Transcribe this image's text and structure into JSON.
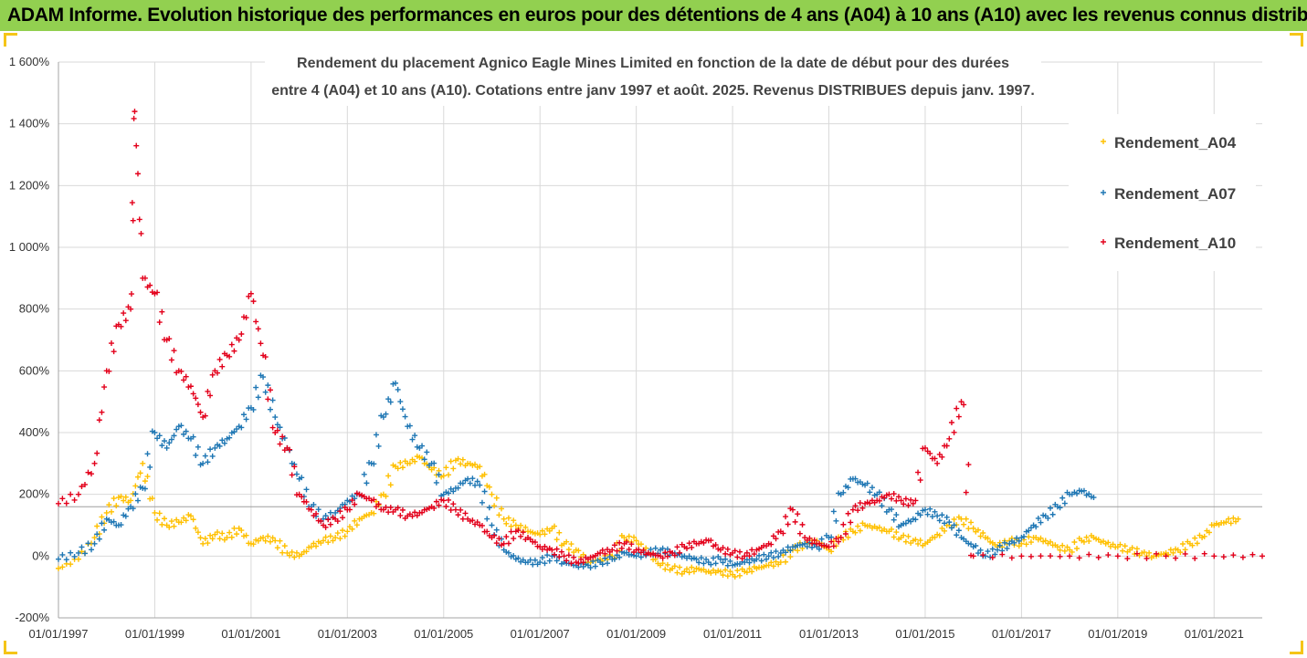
{
  "banner": {
    "title": "ADAM Informe. Evolution historique des performances en euros pour des détentions de 4 ans (A04) à 10 ans (A10) avec les revenus connus distribués",
    "color": "#92d050"
  },
  "chart_data": {
    "type": "scatter",
    "title_line1": "Rendement du placement Agnico Eagle Mines Limited en fonction de la date de début pour des durées",
    "title_line2": "entre 4 (A04) et 10 ans (A10). Cotations entre janv 1997 et août. 2025. Revenus DISTRIBUES depuis janv. 1997.",
    "xlabel": "",
    "ylabel": "",
    "x_ticks": [
      "01/01/1997",
      "01/01/1999",
      "01/01/2001",
      "01/01/2003",
      "01/01/2005",
      "01/01/2007",
      "01/01/2009",
      "01/01/2011",
      "01/01/2013",
      "01/01/2015",
      "01/01/2017",
      "01/01/2019",
      "01/01/2021"
    ],
    "y_ticks": [
      "-200%",
      "0%",
      "200%",
      "400%",
      "600%",
      "800%",
      "1 000%",
      "1 200%",
      "1 400%",
      "1 600%"
    ],
    "xlim": [
      "1997-01-01",
      "2022-01-01"
    ],
    "ylim": [
      -200,
      1600
    ],
    "grid": true,
    "legend_position": "top-right",
    "reference_line": 160,
    "marker": "+",
    "series": [
      {
        "name": "Rendement_A04",
        "color": "#ffc000",
        "x": [
          "1997-01",
          "1997-06",
          "1997-10",
          "1998-01",
          "1998-04",
          "1998-07",
          "1998-10",
          "1999-01",
          "1999-04",
          "1999-07",
          "1999-10",
          "2000-01",
          "2000-04",
          "2000-07",
          "2000-10",
          "2001-01",
          "2001-04",
          "2001-07",
          "2001-10",
          "2002-01",
          "2002-04",
          "2002-07",
          "2002-10",
          "2003-01",
          "2003-04",
          "2003-07",
          "2003-10",
          "2004-01",
          "2004-04",
          "2004-07",
          "2004-10",
          "2005-01",
          "2005-04",
          "2005-07",
          "2005-10",
          "2006-01",
          "2006-04",
          "2006-07",
          "2006-10",
          "2007-01",
          "2007-04",
          "2007-07",
          "2007-10",
          "2008-01",
          "2008-04",
          "2008-07",
          "2008-10",
          "2009-01",
          "2009-04",
          "2009-07",
          "2009-10",
          "2010-01",
          "2010-04",
          "2010-07",
          "2010-10",
          "2011-01",
          "2011-04",
          "2011-07",
          "2011-10",
          "2012-01",
          "2012-04",
          "2012-07",
          "2012-10",
          "2013-01",
          "2013-04",
          "2013-07",
          "2013-10",
          "2014-01",
          "2014-04",
          "2014-07",
          "2014-10",
          "2015-01",
          "2015-04",
          "2015-07",
          "2015-10",
          "2016-01",
          "2016-04",
          "2016-07",
          "2016-10",
          "2017-01",
          "2017-04",
          "2017-07",
          "2017-10",
          "2018-01",
          "2018-04",
          "2018-07",
          "2018-10",
          "2019-01",
          "2019-04",
          "2019-07",
          "2019-10",
          "2020-01",
          "2020-04",
          "2020-07",
          "2020-10",
          "2021-01",
          "2021-04",
          "2021-07"
        ],
        "y": [
          -40,
          -10,
          60,
          140,
          190,
          180,
          300,
          140,
          100,
          110,
          130,
          40,
          70,
          60,
          90,
          40,
          60,
          50,
          10,
          0,
          30,
          50,
          60,
          80,
          120,
          140,
          200,
          290,
          300,
          320,
          280,
          260,
          310,
          300,
          290,
          200,
          120,
          100,
          80,
          70,
          90,
          40,
          20,
          -20,
          -10,
          0,
          60,
          50,
          10,
          -30,
          -40,
          -50,
          -40,
          -50,
          -50,
          -60,
          -50,
          -40,
          -30,
          -20,
          20,
          40,
          50,
          20,
          60,
          80,
          100,
          90,
          80,
          60,
          50,
          40,
          70,
          100,
          120,
          90,
          60,
          30,
          50,
          40,
          60,
          50,
          30,
          20,
          50,
          60,
          40,
          30,
          20,
          10,
          0,
          10,
          20,
          40,
          60,
          100,
          110,
          120
        ]
      },
      {
        "name": "Rendement_A07",
        "color": "#1f77b4",
        "x": [
          "1997-01",
          "1997-06",
          "1997-10",
          "1998-01",
          "1998-04",
          "1998-07",
          "1998-10",
          "1999-01",
          "1999-04",
          "1999-07",
          "1999-10",
          "2000-01",
          "2000-04",
          "2000-07",
          "2000-10",
          "2001-01",
          "2001-04",
          "2001-07",
          "2001-10",
          "2002-01",
          "2002-04",
          "2002-07",
          "2002-10",
          "2003-01",
          "2003-04",
          "2003-07",
          "2003-10",
          "2004-01",
          "2004-04",
          "2004-07",
          "2004-10",
          "2005-01",
          "2005-04",
          "2005-07",
          "2005-10",
          "2006-01",
          "2006-04",
          "2006-07",
          "2006-10",
          "2007-01",
          "2007-04",
          "2007-07",
          "2007-10",
          "2008-01",
          "2008-04",
          "2008-07",
          "2008-10",
          "2009-01",
          "2009-04",
          "2009-07",
          "2009-10",
          "2010-01",
          "2010-04",
          "2010-07",
          "2010-10",
          "2011-01",
          "2011-04",
          "2011-07",
          "2011-10",
          "2012-01",
          "2012-04",
          "2012-07",
          "2012-10",
          "2013-01",
          "2013-04",
          "2013-07",
          "2013-10",
          "2014-01",
          "2014-04",
          "2014-07",
          "2014-10",
          "2015-01",
          "2015-04",
          "2015-07",
          "2015-10",
          "2016-01",
          "2016-04",
          "2016-07",
          "2016-10",
          "2017-01",
          "2017-04",
          "2017-07",
          "2017-10",
          "2018-01",
          "2018-04",
          "2018-07"
        ],
        "y": [
          -10,
          10,
          40,
          120,
          100,
          160,
          220,
          400,
          350,
          420,
          380,
          300,
          350,
          380,
          420,
          480,
          580,
          450,
          350,
          250,
          160,
          120,
          140,
          180,
          200,
          300,
          450,
          560,
          420,
          350,
          300,
          200,
          220,
          250,
          230,
          100,
          20,
          -10,
          -20,
          -20,
          0,
          -20,
          -30,
          -30,
          -20,
          -10,
          10,
          0,
          10,
          20,
          10,
          0,
          -10,
          -20,
          -10,
          -30,
          -20,
          -10,
          0,
          10,
          30,
          40,
          30,
          60,
          200,
          250,
          230,
          200,
          150,
          100,
          120,
          150,
          130,
          110,
          60,
          30,
          0,
          20,
          40,
          60,
          100,
          130,
          160,
          200,
          210,
          190
        ]
      },
      {
        "name": "Rendement_A10",
        "color": "#e3001b",
        "x": [
          "1997-01",
          "1997-06",
          "1997-10",
          "1998-01",
          "1998-04",
          "1998-07",
          "1998-08",
          "1998-10",
          "1999-01",
          "1999-04",
          "1999-07",
          "1999-10",
          "2000-01",
          "2000-04",
          "2000-07",
          "2000-10",
          "2001-01",
          "2001-04",
          "2001-07",
          "2001-10",
          "2002-01",
          "2002-04",
          "2002-07",
          "2002-10",
          "2003-01",
          "2003-04",
          "2003-07",
          "2003-10",
          "2004-01",
          "2004-04",
          "2004-07",
          "2004-10",
          "2005-01",
          "2005-04",
          "2005-07",
          "2005-10",
          "2006-01",
          "2006-04",
          "2006-07",
          "2006-10",
          "2007-01",
          "2007-04",
          "2007-07",
          "2007-10",
          "2008-01",
          "2008-04",
          "2008-07",
          "2008-10",
          "2009-01",
          "2009-04",
          "2009-07",
          "2009-10",
          "2010-01",
          "2010-04",
          "2010-07",
          "2010-10",
          "2011-01",
          "2011-04",
          "2011-07",
          "2011-10",
          "2012-01",
          "2012-04",
          "2012-07",
          "2012-10",
          "2013-01",
          "2013-04",
          "2013-07",
          "2013-10",
          "2014-01",
          "2014-04",
          "2014-07",
          "2014-10",
          "2015-01",
          "2015-04",
          "2015-07",
          "2015-10",
          "2016-01",
          "2017-01",
          "2018-01",
          "2019-01",
          "2020-01",
          "2021-01",
          "2022-01"
        ],
        "y": [
          170,
          200,
          300,
          600,
          750,
          800,
          1440,
          900,
          850,
          700,
          600,
          550,
          450,
          600,
          650,
          700,
          850,
          650,
          400,
          350,
          200,
          150,
          100,
          120,
          150,
          200,
          180,
          150,
          150,
          130,
          140,
          160,
          180,
          150,
          120,
          100,
          60,
          40,
          80,
          60,
          30,
          20,
          0,
          -20,
          -10,
          10,
          20,
          40,
          20,
          10,
          0,
          10,
          30,
          40,
          50,
          20,
          10,
          0,
          20,
          40,
          80,
          150,
          60,
          40,
          30,
          60,
          150,
          170,
          180,
          200,
          180,
          170,
          350,
          300,
          380,
          500,
          0,
          0,
          0,
          0,
          0,
          0,
          0
        ]
      }
    ]
  }
}
